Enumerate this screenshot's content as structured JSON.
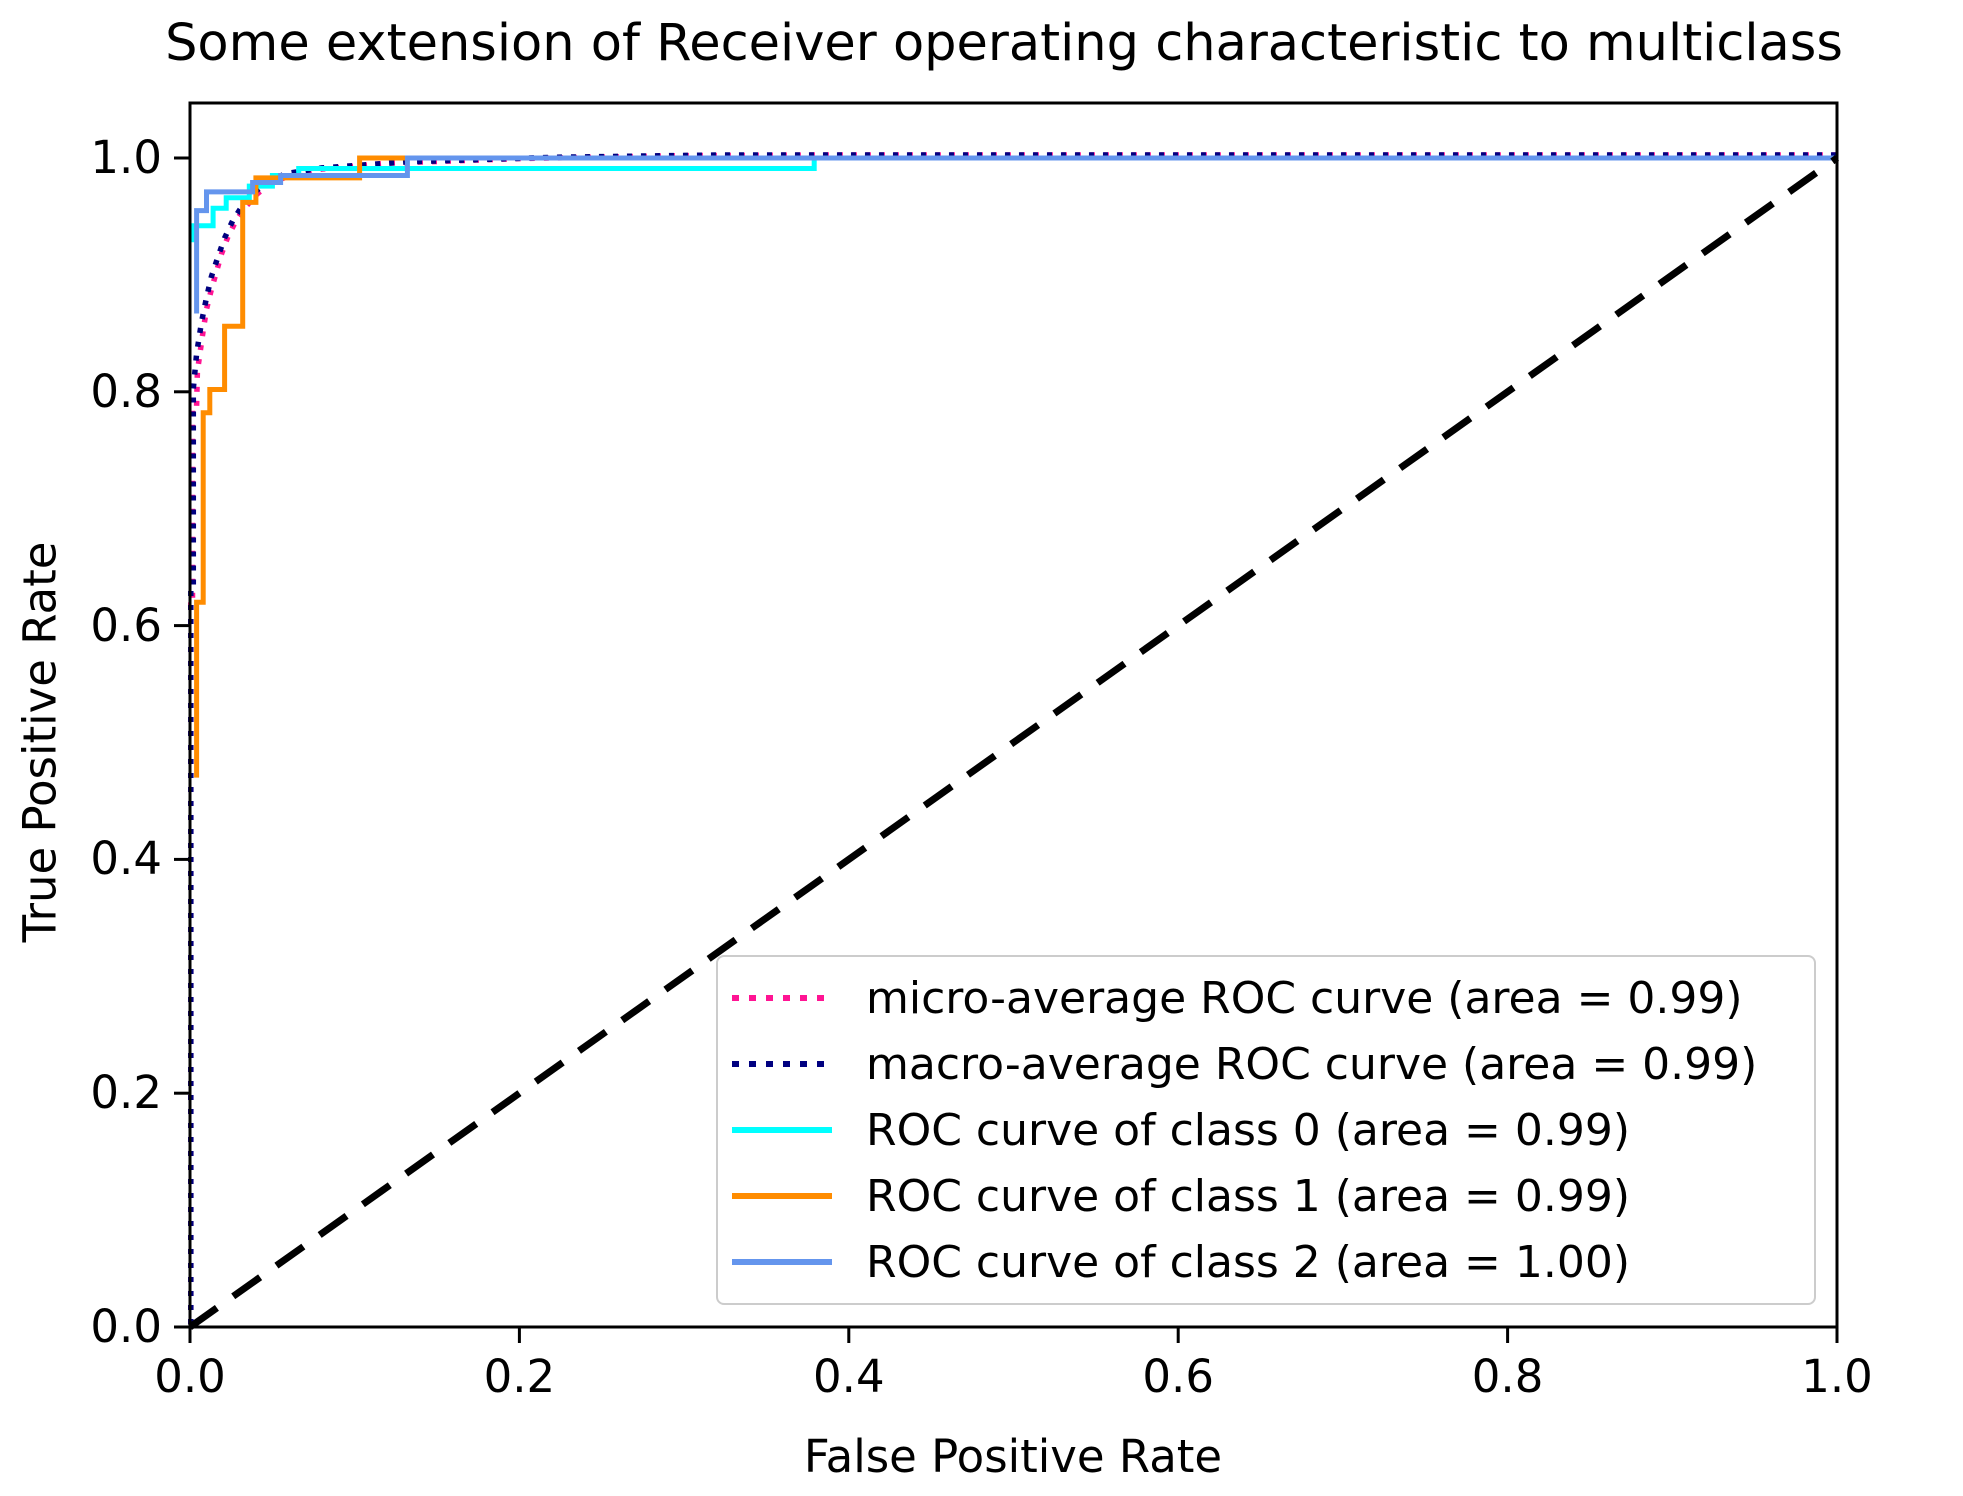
{
  "chart_data": {
    "type": "line",
    "title": "Some extension of Receiver operating characteristic to multiclass",
    "xlabel": "False Positive Rate",
    "ylabel": "True Positive Rate",
    "xlim": [
      0.0,
      1.0
    ],
    "ylim": [
      0.0,
      1.0
    ],
    "xticks": [
      "0.0",
      "0.2",
      "0.4",
      "0.6",
      "0.8",
      "1.0"
    ],
    "yticks": [
      "0.0",
      "0.2",
      "0.4",
      "0.6",
      "0.8",
      "1.0"
    ],
    "grid": false,
    "legend_position": "lower right",
    "axis_color": "#000000",
    "legend_border_color": "#cccccc",
    "series": [
      {
        "name": "micro-average ROC curve (area = 0.99)",
        "area": "0.99",
        "color": "#FF1493",
        "style": "dotted",
        "points": [
          [
            0.0005,
            0.0
          ],
          [
            0.0005,
            0.615
          ],
          [
            0.0015,
            0.615
          ],
          [
            0.0015,
            0.785
          ],
          [
            0.004,
            0.785
          ],
          [
            0.0045,
            0.815
          ],
          [
            0.006,
            0.83
          ],
          [
            0.008,
            0.85
          ],
          [
            0.01,
            0.868
          ],
          [
            0.013,
            0.885
          ],
          [
            0.016,
            0.9
          ],
          [
            0.019,
            0.915
          ],
          [
            0.023,
            0.93
          ],
          [
            0.028,
            0.944
          ],
          [
            0.034,
            0.956
          ],
          [
            0.041,
            0.967
          ],
          [
            0.049,
            0.976
          ],
          [
            0.06,
            0.982
          ],
          [
            0.08,
            0.988
          ],
          [
            0.12,
            0.993
          ],
          [
            0.2,
            0.997
          ],
          [
            0.3,
            0.9995
          ],
          [
            0.38,
            1.0
          ],
          [
            1.0,
            1.0
          ]
        ]
      },
      {
        "name": "macro-average ROC curve (area = 0.99)",
        "area": "0.99",
        "color": "#000080",
        "style": "dotted",
        "points": [
          [
            0.0005,
            0.0
          ],
          [
            0.0005,
            0.63
          ],
          [
            0.002,
            0.63
          ],
          [
            0.002,
            0.8
          ],
          [
            0.004,
            0.83
          ],
          [
            0.007,
            0.857
          ],
          [
            0.01,
            0.878
          ],
          [
            0.013,
            0.896
          ],
          [
            0.017,
            0.913
          ],
          [
            0.021,
            0.929
          ],
          [
            0.026,
            0.944
          ],
          [
            0.032,
            0.957
          ],
          [
            0.039,
            0.968
          ],
          [
            0.047,
            0.977
          ],
          [
            0.058,
            0.984
          ],
          [
            0.08,
            0.989
          ],
          [
            0.13,
            0.994
          ],
          [
            0.22,
            0.998
          ],
          [
            0.32,
            1.0
          ],
          [
            1.0,
            1.0
          ]
        ]
      },
      {
        "name": "ROC curve of class 0 (area = 0.99)",
        "area": "0.99",
        "color": "#00FFFF",
        "style": "solid",
        "points": [
          [
            0.002,
            0.928
          ],
          [
            0.002,
            0.942
          ],
          [
            0.014,
            0.942
          ],
          [
            0.014,
            0.957
          ],
          [
            0.022,
            0.957
          ],
          [
            0.022,
            0.966
          ],
          [
            0.036,
            0.966
          ],
          [
            0.036,
            0.976
          ],
          [
            0.05,
            0.976
          ],
          [
            0.05,
            0.985
          ],
          [
            0.066,
            0.985
          ],
          [
            0.066,
            0.991
          ],
          [
            0.379,
            0.991
          ],
          [
            0.379,
            1.0
          ],
          [
            1.0,
            1.0
          ]
        ]
      },
      {
        "name": "ROC curve of class 1 (area = 0.99)",
        "area": "0.99",
        "color": "#FF8C00",
        "style": "solid",
        "points": [
          [
            0.004,
            0.47
          ],
          [
            0.004,
            0.62
          ],
          [
            0.008,
            0.62
          ],
          [
            0.008,
            0.782
          ],
          [
            0.012,
            0.782
          ],
          [
            0.012,
            0.802
          ],
          [
            0.021,
            0.802
          ],
          [
            0.021,
            0.856
          ],
          [
            0.032,
            0.856
          ],
          [
            0.032,
            0.962
          ],
          [
            0.04,
            0.962
          ],
          [
            0.04,
            0.983
          ],
          [
            0.103,
            0.983
          ],
          [
            0.103,
            1.0
          ],
          [
            1.0,
            1.0
          ]
        ]
      },
      {
        "name": "ROC curve of class 2 (area = 1.00)",
        "area": "1.00",
        "color": "#6495ED",
        "style": "solid",
        "points": [
          [
            0.004,
            0.867
          ],
          [
            0.004,
            0.955
          ],
          [
            0.01,
            0.955
          ],
          [
            0.01,
            0.971
          ],
          [
            0.038,
            0.971
          ],
          [
            0.038,
            0.979
          ],
          [
            0.055,
            0.979
          ],
          [
            0.055,
            0.985
          ],
          [
            0.132,
            0.985
          ],
          [
            0.132,
            1.0
          ],
          [
            1.0,
            1.0
          ]
        ]
      },
      {
        "name": "chance-diagonal",
        "color": "#000000",
        "style": "dashed",
        "in_legend": false,
        "points": [
          [
            0.0,
            0.0
          ],
          [
            1.0,
            1.0
          ]
        ]
      }
    ]
  }
}
